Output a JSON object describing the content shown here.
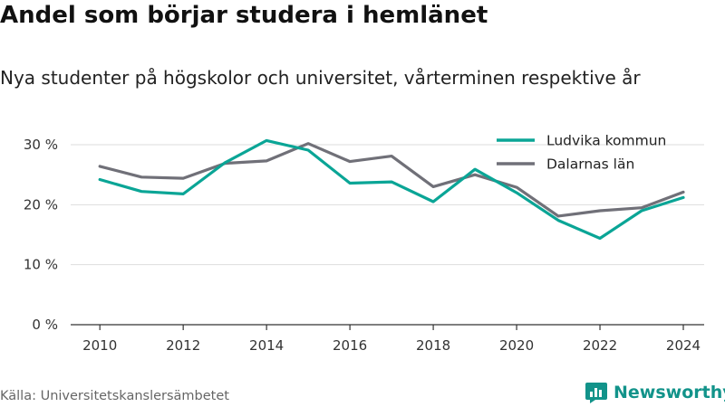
{
  "header": {
    "title": "Andel som börjar studera i hemlänet",
    "subtitle": "Nya studenter på högskolor och universitet, vårterminen respektive år"
  },
  "footer": {
    "source": "Källa: Universitetskanslersämbetet",
    "brand": "Newsworthy",
    "brand_icon": "newsworthy-logo-icon"
  },
  "colors": {
    "ludvika": "#0aa596",
    "dalarna": "#707078",
    "grid": "#dddddd",
    "axis": "#333333",
    "brand": "#12938a"
  },
  "chart_data": {
    "type": "line",
    "title": "Andel som börjar studera i hemlänet",
    "subtitle": "Nya studenter på högskolor och universitet, vårterminen respektive år",
    "x": [
      2010,
      2011,
      2012,
      2013,
      2014,
      2015,
      2016,
      2017,
      2018,
      2019,
      2020,
      2021,
      2022,
      2023,
      2024
    ],
    "series": [
      {
        "name": "Ludvika kommun",
        "values": [
          24.2,
          22.2,
          21.8,
          27.0,
          30.7,
          29.1,
          23.6,
          23.8,
          20.5,
          25.9,
          22.0,
          17.4,
          14.4,
          19.0,
          21.2
        ]
      },
      {
        "name": "Dalarnas län",
        "values": [
          26.4,
          24.6,
          24.4,
          26.9,
          27.3,
          30.2,
          27.2,
          28.1,
          23.0,
          25.0,
          22.9,
          18.1,
          19.0,
          19.5,
          22.1
        ]
      }
    ],
    "xlabel": "",
    "ylabel": "",
    "x_ticks": [
      "2010",
      "2012",
      "2014",
      "2016",
      "2018",
      "2020",
      "2022",
      "2024"
    ],
    "y_ticks": [
      "0 %",
      "10 %",
      "20 %",
      "30 %"
    ],
    "ylim": [
      0,
      30
    ],
    "xlim": [
      2009.3,
      2024.5
    ],
    "grid": true,
    "legend": "top-right"
  }
}
